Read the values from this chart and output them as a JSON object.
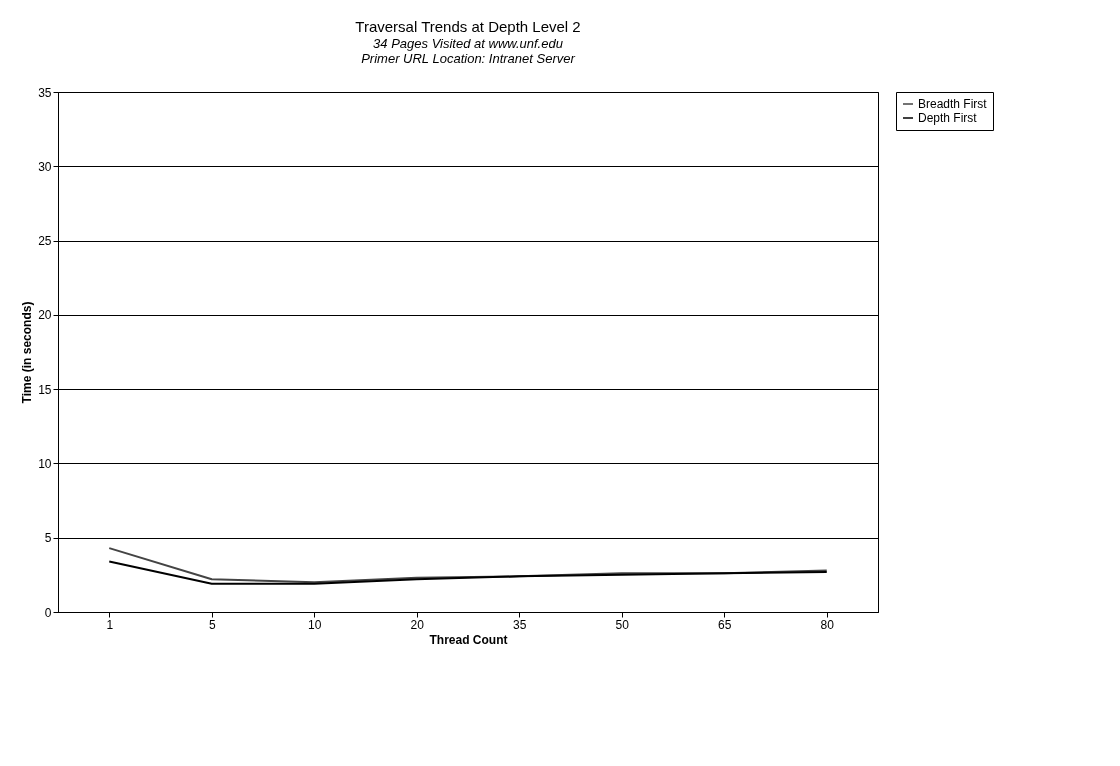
{
  "chart_data": {
    "type": "line",
    "title": "Traversal Trends at Depth Level 2",
    "subtitle": [
      "34 Pages Visited at www.unf.edu",
      "Primer URL Location: Intranet Server"
    ],
    "xlabel": "Thread Count",
    "ylabel": "Time (in seconds)",
    "categories": [
      "1",
      "5",
      "10",
      "20",
      "35",
      "50",
      "65",
      "80"
    ],
    "series": [
      {
        "name": "Breadth First",
        "color": "#444444",
        "values": [
          4.3,
          2.2,
          2.0,
          2.3,
          2.4,
          2.6,
          2.6,
          2.8
        ]
      },
      {
        "name": "Depth First",
        "color": "#000000",
        "values": [
          3.4,
          1.9,
          1.9,
          2.2,
          2.4,
          2.5,
          2.6,
          2.7
        ]
      }
    ],
    "ylim": [
      0,
      35
    ],
    "yticks": [
      0,
      5,
      10,
      15,
      20,
      25,
      30,
      35
    ],
    "grid": "y",
    "legend": "right",
    "marker": "none",
    "line_style": "solid"
  }
}
